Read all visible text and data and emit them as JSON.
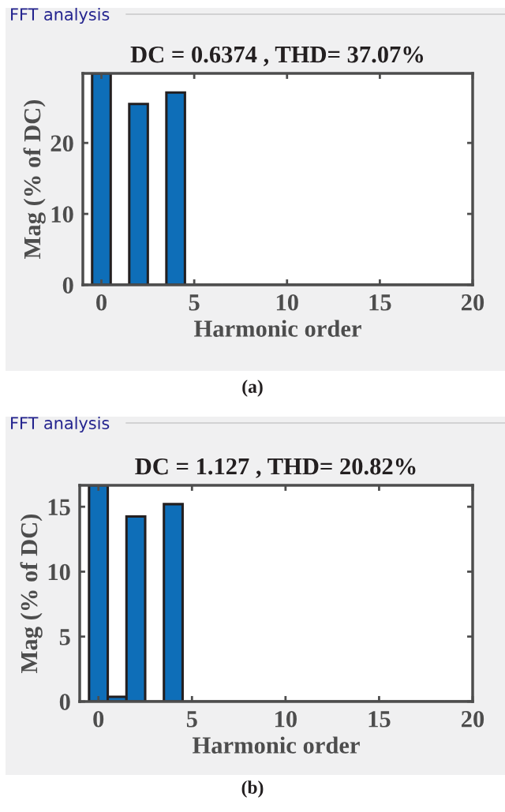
{
  "chart_data": [
    {
      "type": "bar",
      "title": "DC = 0.6374 , THD= 37.07%",
      "xlabel": "Harmonic order",
      "ylabel": "Mag (% of DC)",
      "color": "#0e6eb8",
      "x": [
        0,
        1,
        2,
        3,
        4,
        5,
        6,
        7,
        8,
        9,
        10,
        11,
        12,
        13,
        14,
        15,
        16,
        17,
        18,
        19,
        20
      ],
      "values": [
        29.8,
        0,
        25.5,
        0,
        27.1,
        0,
        0,
        0,
        0,
        0,
        0,
        0,
        0,
        0,
        0,
        0,
        0,
        0,
        0,
        0,
        0
      ],
      "xlim": [
        -1,
        20
      ],
      "xticks": [
        0,
        5,
        10,
        15,
        20
      ],
      "ylim": [
        0,
        29.8
      ],
      "yticks": [
        0,
        10,
        20
      ],
      "annotations": [
        "FFT analysis",
        "(a)"
      ]
    },
    {
      "type": "bar",
      "title": "DC = 1.127 , THD= 20.82%",
      "xlabel": "Harmonic order",
      "ylabel": "Mag (% of DC)",
      "color": "#0e6eb8",
      "x": [
        0,
        1,
        2,
        3,
        4,
        5,
        6,
        7,
        8,
        9,
        10,
        11,
        12,
        13,
        14,
        15,
        16,
        17,
        18,
        19,
        20
      ],
      "values": [
        16.65,
        0.36,
        14.25,
        0,
        15.2,
        0,
        0,
        0,
        0,
        0,
        0,
        0,
        0,
        0,
        0,
        0,
        0,
        0,
        0,
        0,
        0
      ],
      "xlim": [
        -1,
        20
      ],
      "xticks": [
        0,
        5,
        10,
        15,
        20
      ],
      "ylim": [
        0,
        16.65
      ],
      "yticks": [
        0,
        5,
        10,
        15
      ],
      "annotations": [
        "FFT analysis",
        "(b)"
      ]
    }
  ]
}
